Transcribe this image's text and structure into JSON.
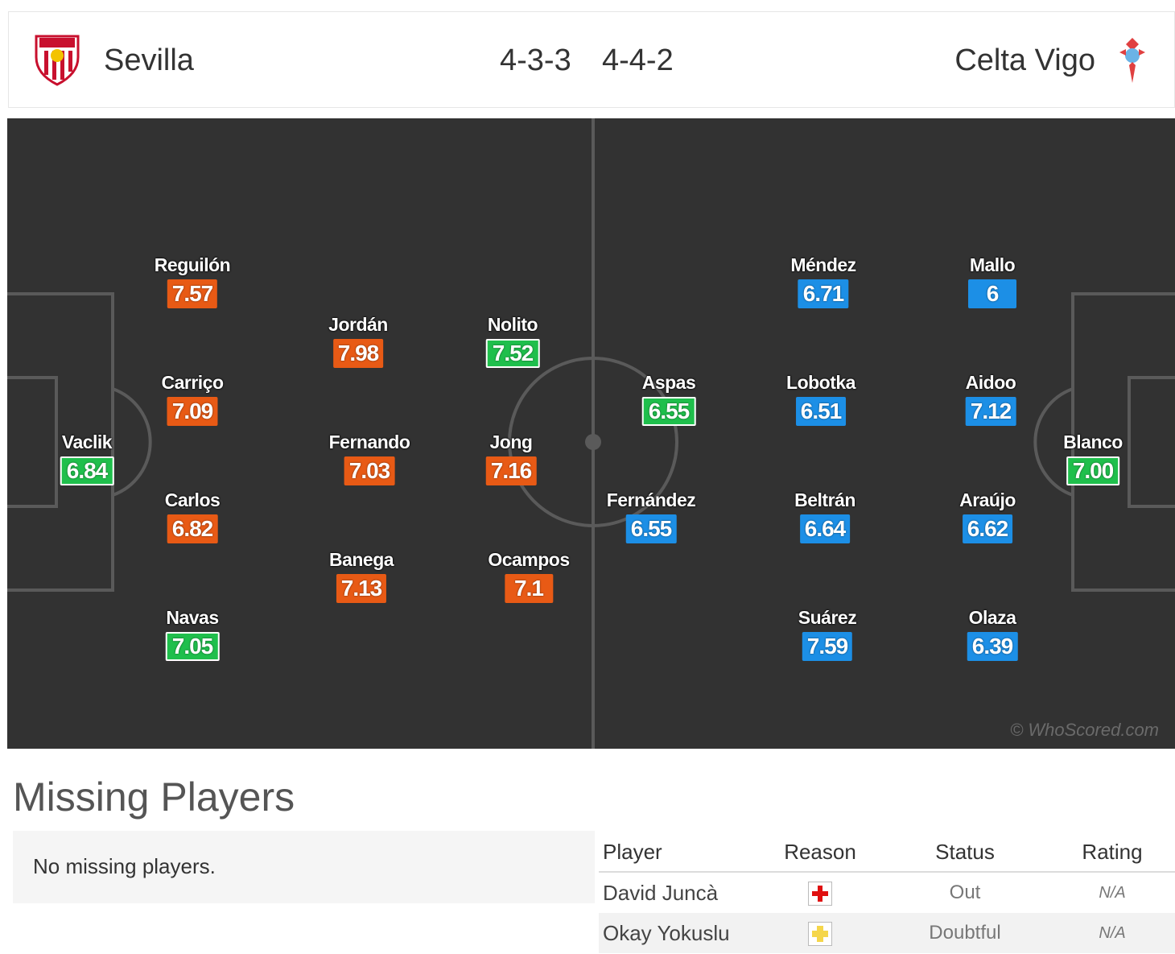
{
  "header": {
    "home_team": "Sevilla",
    "away_team": "Celta Vigo",
    "home_formation": "4-3-3",
    "away_formation": "4-4-2",
    "home_crest_icon": "sevilla-crest-icon",
    "away_crest_icon": "celta-crest-icon"
  },
  "pitch": {
    "watermark": "© WhoScored.com",
    "players": [
      {
        "name": "Vaclik",
        "rating": "6.84",
        "color": "green",
        "team": "home"
      },
      {
        "name": "Reguilón",
        "rating": "7.57",
        "color": "orange",
        "team": "home"
      },
      {
        "name": "Carriço",
        "rating": "7.09",
        "color": "orange",
        "team": "home"
      },
      {
        "name": "Carlos",
        "rating": "6.82",
        "color": "orange",
        "team": "home"
      },
      {
        "name": "Navas",
        "rating": "7.05",
        "color": "green",
        "team": "home"
      },
      {
        "name": "Jordán",
        "rating": "7.98",
        "color": "orange",
        "team": "home"
      },
      {
        "name": "Fernando",
        "rating": "7.03",
        "color": "orange",
        "team": "home"
      },
      {
        "name": "Banega",
        "rating": "7.13",
        "color": "orange",
        "team": "home"
      },
      {
        "name": "Nolito",
        "rating": "7.52",
        "color": "green",
        "team": "home"
      },
      {
        "name": "Jong",
        "rating": "7.16",
        "color": "orange",
        "team": "home"
      },
      {
        "name": "Ocampos",
        "rating": "7.1",
        "color": "orange",
        "team": "home"
      },
      {
        "name": "Aspas",
        "rating": "6.55",
        "color": "green",
        "team": "away"
      },
      {
        "name": "Fernández",
        "rating": "6.55",
        "color": "blue",
        "team": "away"
      },
      {
        "name": "Méndez",
        "rating": "6.71",
        "color": "blue",
        "team": "away"
      },
      {
        "name": "Lobotka",
        "rating": "6.51",
        "color": "blue",
        "team": "away"
      },
      {
        "name": "Beltrán",
        "rating": "6.64",
        "color": "blue",
        "team": "away"
      },
      {
        "name": "Suárez",
        "rating": "7.59",
        "color": "blue",
        "team": "away"
      },
      {
        "name": "Mallo",
        "rating": "6",
        "color": "blue",
        "team": "away"
      },
      {
        "name": "Aidoo",
        "rating": "7.12",
        "color": "blue",
        "team": "away"
      },
      {
        "name": "Araújo",
        "rating": "6.62",
        "color": "blue",
        "team": "away"
      },
      {
        "name": "Olaza",
        "rating": "6.39",
        "color": "blue",
        "team": "away"
      },
      {
        "name": "Blanco",
        "rating": "7.00",
        "color": "green",
        "team": "away"
      }
    ]
  },
  "missing": {
    "title": "Missing Players",
    "home_empty_text": "No missing players.",
    "columns": [
      "Player",
      "Reason",
      "Status",
      "Rating"
    ],
    "away_rows": [
      {
        "player": "David Juncà",
        "reason_icon": "injury-icon",
        "status": "Out",
        "rating": "N/A"
      },
      {
        "player": "Okay Yokuslu",
        "reason_icon": "doubtful-icon",
        "status": "Doubtful",
        "rating": "N/A"
      }
    ]
  },
  "colors": {
    "orange": "#e85a15",
    "green": "#1fbf4c",
    "blue": "#1c8fe6",
    "pitch": "#323232"
  }
}
